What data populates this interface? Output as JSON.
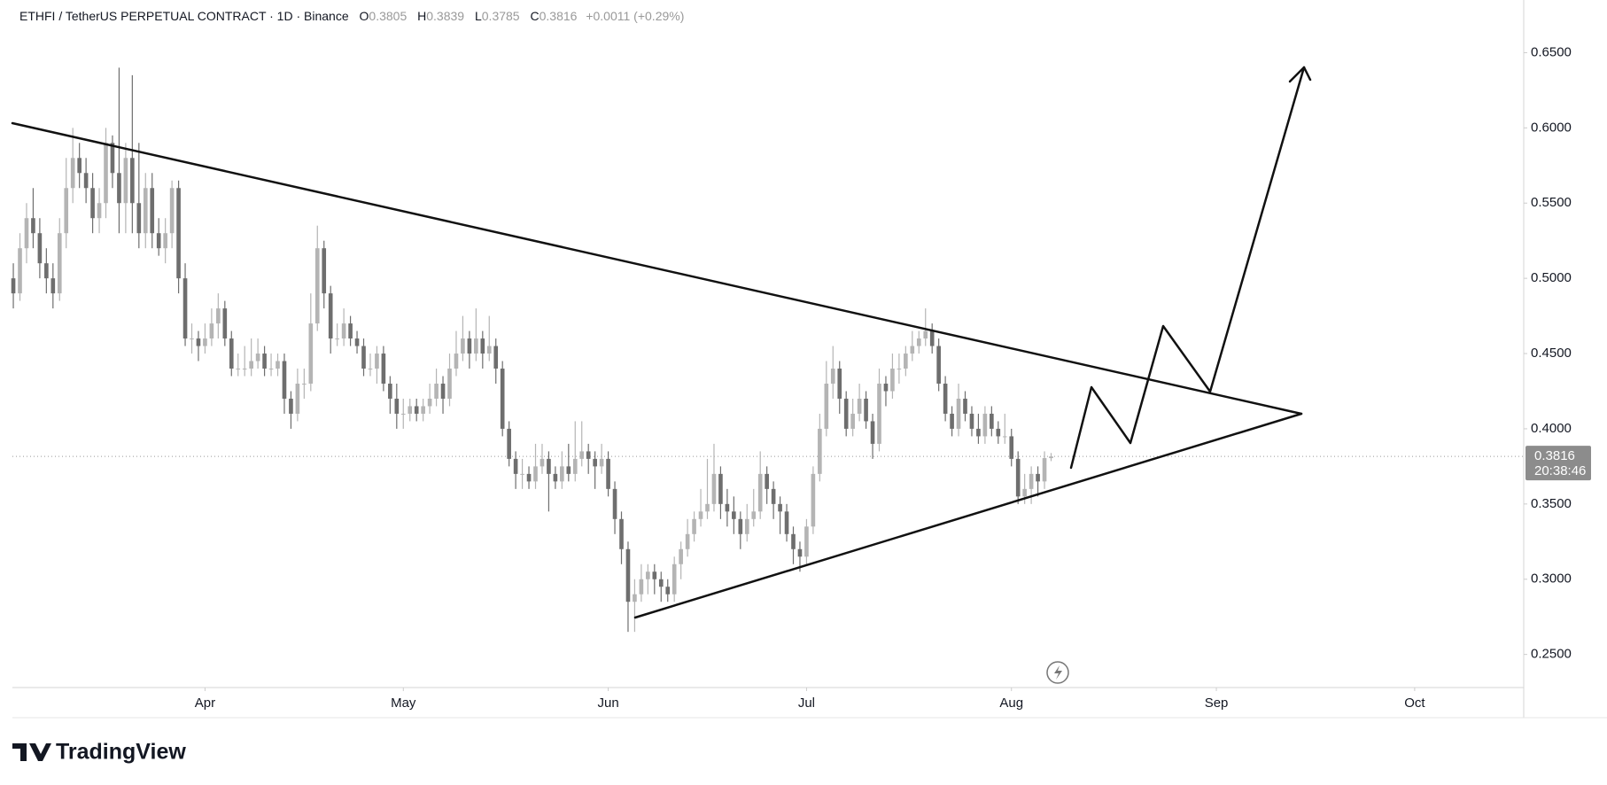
{
  "chart_data": {
    "type": "candlestick",
    "title": "ETHFI / TetherUS PERPETUAL CONTRACT · 1D · Binance",
    "ohlc_letters": [
      "O",
      "H",
      "L",
      "C"
    ],
    "change": "+0.0011 (+0.29%)",
    "countdown": "20:38:46",
    "brand": "TradingView",
    "up_color": "#b4b4b4",
    "down_color": "#6e6e6e",
    "ylim": [
      0.228,
      0.685
    ],
    "yticks": [
      {
        "value": 0.25,
        "label": "0.2500"
      },
      {
        "value": 0.3,
        "label": "0.3000"
      },
      {
        "value": 0.35,
        "label": "0.3500"
      },
      {
        "value": 0.4,
        "label": "0.4000"
      },
      {
        "value": 0.45,
        "label": "0.4500"
      },
      {
        "value": 0.5,
        "label": "0.5000"
      },
      {
        "value": 0.55,
        "label": "0.5500"
      },
      {
        "value": 0.6,
        "label": "0.6000"
      },
      {
        "value": 0.65,
        "label": "0.6500"
      }
    ],
    "xlim": [
      -0.14,
      228.5
    ],
    "xticks": [
      {
        "value": 29,
        "label": "Apr"
      },
      {
        "value": 59,
        "label": "May"
      },
      {
        "value": 90,
        "label": "Jun"
      },
      {
        "value": 120,
        "label": "Jul"
      },
      {
        "value": 151,
        "label": "Aug"
      },
      {
        "value": 182,
        "label": "Sep"
      },
      {
        "value": 212,
        "label": "Oct"
      }
    ],
    "candles": [
      [
        0.5,
        0.51,
        0.48,
        0.49
      ],
      [
        0.49,
        0.53,
        0.485,
        0.52
      ],
      [
        0.52,
        0.55,
        0.51,
        0.54
      ],
      [
        0.54,
        0.56,
        0.52,
        0.53
      ],
      [
        0.53,
        0.54,
        0.5,
        0.51
      ],
      [
        0.51,
        0.52,
        0.49,
        0.5
      ],
      [
        0.5,
        0.51,
        0.48,
        0.49
      ],
      [
        0.49,
        0.54,
        0.485,
        0.53
      ],
      [
        0.53,
        0.58,
        0.52,
        0.56
      ],
      [
        0.56,
        0.6,
        0.55,
        0.58
      ],
      [
        0.58,
        0.59,
        0.56,
        0.57
      ],
      [
        0.57,
        0.58,
        0.55,
        0.56
      ],
      [
        0.56,
        0.57,
        0.53,
        0.54
      ],
      [
        0.54,
        0.56,
        0.53,
        0.55
      ],
      [
        0.55,
        0.6,
        0.54,
        0.59
      ],
      [
        0.59,
        0.595,
        0.56,
        0.57
      ],
      [
        0.57,
        0.64,
        0.53,
        0.55
      ],
      [
        0.55,
        0.59,
        0.53,
        0.58
      ],
      [
        0.58,
        0.635,
        0.53,
        0.55
      ],
      [
        0.55,
        0.59,
        0.52,
        0.53
      ],
      [
        0.53,
        0.57,
        0.52,
        0.56
      ],
      [
        0.56,
        0.57,
        0.52,
        0.53
      ],
      [
        0.53,
        0.54,
        0.515,
        0.52
      ],
      [
        0.52,
        0.54,
        0.51,
        0.53
      ],
      [
        0.53,
        0.565,
        0.52,
        0.56
      ],
      [
        0.56,
        0.565,
        0.49,
        0.5
      ],
      [
        0.5,
        0.51,
        0.455,
        0.46
      ],
      [
        0.46,
        0.47,
        0.45,
        0.46
      ],
      [
        0.46,
        0.465,
        0.445,
        0.455
      ],
      [
        0.455,
        0.47,
        0.45,
        0.46
      ],
      [
        0.46,
        0.48,
        0.455,
        0.47
      ],
      [
        0.47,
        0.49,
        0.46,
        0.48
      ],
      [
        0.48,
        0.485,
        0.455,
        0.46
      ],
      [
        0.46,
        0.465,
        0.435,
        0.44
      ],
      [
        0.44,
        0.45,
        0.435,
        0.44
      ],
      [
        0.44,
        0.455,
        0.435,
        0.44
      ],
      [
        0.44,
        0.46,
        0.435,
        0.445
      ],
      [
        0.445,
        0.46,
        0.44,
        0.45
      ],
      [
        0.45,
        0.455,
        0.435,
        0.44
      ],
      [
        0.44,
        0.45,
        0.435,
        0.44
      ],
      [
        0.44,
        0.45,
        0.435,
        0.445
      ],
      [
        0.445,
        0.45,
        0.41,
        0.42
      ],
      [
        0.42,
        0.425,
        0.4,
        0.41
      ],
      [
        0.41,
        0.44,
        0.405,
        0.43
      ],
      [
        0.43,
        0.44,
        0.42,
        0.43
      ],
      [
        0.43,
        0.49,
        0.425,
        0.47
      ],
      [
        0.47,
        0.535,
        0.465,
        0.52
      ],
      [
        0.52,
        0.525,
        0.48,
        0.49
      ],
      [
        0.49,
        0.495,
        0.45,
        0.46
      ],
      [
        0.46,
        0.47,
        0.455,
        0.46
      ],
      [
        0.46,
        0.48,
        0.455,
        0.47
      ],
      [
        0.47,
        0.475,
        0.455,
        0.46
      ],
      [
        0.46,
        0.465,
        0.45,
        0.455
      ],
      [
        0.455,
        0.46,
        0.435,
        0.44
      ],
      [
        0.44,
        0.45,
        0.435,
        0.44
      ],
      [
        0.44,
        0.455,
        0.43,
        0.45
      ],
      [
        0.45,
        0.455,
        0.425,
        0.43
      ],
      [
        0.43,
        0.435,
        0.41,
        0.42
      ],
      [
        0.42,
        0.43,
        0.4,
        0.41
      ],
      [
        0.41,
        0.42,
        0.4,
        0.41
      ],
      [
        0.41,
        0.42,
        0.405,
        0.415
      ],
      [
        0.415,
        0.42,
        0.405,
        0.41
      ],
      [
        0.41,
        0.42,
        0.405,
        0.415
      ],
      [
        0.415,
        0.43,
        0.41,
        0.42
      ],
      [
        0.42,
        0.44,
        0.415,
        0.43
      ],
      [
        0.43,
        0.435,
        0.41,
        0.42
      ],
      [
        0.42,
        0.45,
        0.415,
        0.44
      ],
      [
        0.44,
        0.465,
        0.435,
        0.45
      ],
      [
        0.45,
        0.475,
        0.445,
        0.46
      ],
      [
        0.46,
        0.465,
        0.44,
        0.45
      ],
      [
        0.45,
        0.48,
        0.445,
        0.46
      ],
      [
        0.46,
        0.465,
        0.44,
        0.45
      ],
      [
        0.45,
        0.475,
        0.445,
        0.455
      ],
      [
        0.455,
        0.46,
        0.43,
        0.44
      ],
      [
        0.44,
        0.445,
        0.395,
        0.4
      ],
      [
        0.4,
        0.405,
        0.375,
        0.38
      ],
      [
        0.38,
        0.385,
        0.36,
        0.37
      ],
      [
        0.37,
        0.38,
        0.36,
        0.37
      ],
      [
        0.37,
        0.375,
        0.36,
        0.365
      ],
      [
        0.365,
        0.39,
        0.36,
        0.375
      ],
      [
        0.375,
        0.39,
        0.37,
        0.38
      ],
      [
        0.38,
        0.385,
        0.345,
        0.37
      ],
      [
        0.37,
        0.375,
        0.36,
        0.365
      ],
      [
        0.365,
        0.385,
        0.36,
        0.375
      ],
      [
        0.375,
        0.39,
        0.365,
        0.37
      ],
      [
        0.37,
        0.405,
        0.365,
        0.38
      ],
      [
        0.38,
        0.405,
        0.375,
        0.385
      ],
      [
        0.385,
        0.39,
        0.37,
        0.38
      ],
      [
        0.38,
        0.385,
        0.36,
        0.375
      ],
      [
        0.375,
        0.39,
        0.37,
        0.38
      ],
      [
        0.38,
        0.385,
        0.355,
        0.36
      ],
      [
        0.36,
        0.365,
        0.33,
        0.34
      ],
      [
        0.34,
        0.345,
        0.31,
        0.32
      ],
      [
        0.32,
        0.325,
        0.265,
        0.285
      ],
      [
        0.285,
        0.3,
        0.265,
        0.29
      ],
      [
        0.29,
        0.31,
        0.285,
        0.3
      ],
      [
        0.3,
        0.31,
        0.29,
        0.305
      ],
      [
        0.305,
        0.31,
        0.29,
        0.3
      ],
      [
        0.3,
        0.305,
        0.285,
        0.295
      ],
      [
        0.295,
        0.3,
        0.285,
        0.29
      ],
      [
        0.29,
        0.315,
        0.285,
        0.31
      ],
      [
        0.31,
        0.325,
        0.3,
        0.32
      ],
      [
        0.32,
        0.34,
        0.315,
        0.33
      ],
      [
        0.33,
        0.345,
        0.325,
        0.34
      ],
      [
        0.34,
        0.36,
        0.335,
        0.345
      ],
      [
        0.345,
        0.38,
        0.34,
        0.35
      ],
      [
        0.35,
        0.39,
        0.345,
        0.37
      ],
      [
        0.37,
        0.375,
        0.34,
        0.35
      ],
      [
        0.35,
        0.36,
        0.335,
        0.345
      ],
      [
        0.345,
        0.355,
        0.33,
        0.34
      ],
      [
        0.34,
        0.345,
        0.32,
        0.33
      ],
      [
        0.33,
        0.35,
        0.325,
        0.34
      ],
      [
        0.34,
        0.36,
        0.335,
        0.345
      ],
      [
        0.345,
        0.385,
        0.34,
        0.37
      ],
      [
        0.37,
        0.375,
        0.35,
        0.36
      ],
      [
        0.36,
        0.365,
        0.34,
        0.35
      ],
      [
        0.35,
        0.355,
        0.33,
        0.345
      ],
      [
        0.345,
        0.35,
        0.325,
        0.33
      ],
      [
        0.33,
        0.335,
        0.31,
        0.32
      ],
      [
        0.32,
        0.325,
        0.305,
        0.315
      ],
      [
        0.315,
        0.34,
        0.31,
        0.335
      ],
      [
        0.335,
        0.375,
        0.33,
        0.37
      ],
      [
        0.37,
        0.41,
        0.365,
        0.4
      ],
      [
        0.4,
        0.445,
        0.395,
        0.43
      ],
      [
        0.43,
        0.455,
        0.42,
        0.44
      ],
      [
        0.44,
        0.445,
        0.41,
        0.42
      ],
      [
        0.42,
        0.425,
        0.395,
        0.4
      ],
      [
        0.4,
        0.42,
        0.395,
        0.41
      ],
      [
        0.41,
        0.43,
        0.405,
        0.42
      ],
      [
        0.42,
        0.425,
        0.4,
        0.405
      ],
      [
        0.405,
        0.41,
        0.38,
        0.39
      ],
      [
        0.39,
        0.44,
        0.385,
        0.43
      ],
      [
        0.43,
        0.435,
        0.415,
        0.425
      ],
      [
        0.425,
        0.45,
        0.42,
        0.44
      ],
      [
        0.44,
        0.45,
        0.43,
        0.44
      ],
      [
        0.44,
        0.455,
        0.435,
        0.45
      ],
      [
        0.45,
        0.465,
        0.445,
        0.455
      ],
      [
        0.455,
        0.465,
        0.45,
        0.46
      ],
      [
        0.46,
        0.48,
        0.455,
        0.465
      ],
      [
        0.465,
        0.47,
        0.45,
        0.455
      ],
      [
        0.455,
        0.46,
        0.425,
        0.43
      ],
      [
        0.43,
        0.435,
        0.405,
        0.41
      ],
      [
        0.41,
        0.415,
        0.395,
        0.4
      ],
      [
        0.4,
        0.43,
        0.395,
        0.42
      ],
      [
        0.42,
        0.425,
        0.405,
        0.41
      ],
      [
        0.41,
        0.415,
        0.395,
        0.4
      ],
      [
        0.4,
        0.41,
        0.39,
        0.395
      ],
      [
        0.395,
        0.415,
        0.39,
        0.41
      ],
      [
        0.41,
        0.415,
        0.395,
        0.4
      ],
      [
        0.4,
        0.405,
        0.39,
        0.395
      ],
      [
        0.395,
        0.41,
        0.39,
        0.395
      ],
      [
        0.395,
        0.4,
        0.375,
        0.38
      ],
      [
        0.38,
        0.385,
        0.35,
        0.355
      ],
      [
        0.355,
        0.37,
        0.35,
        0.36
      ],
      [
        0.36,
        0.375,
        0.35,
        0.37
      ],
      [
        0.37,
        0.375,
        0.355,
        0.365
      ],
      [
        0.365,
        0.385,
        0.36,
        0.3805
      ],
      [
        0.3805,
        0.3839,
        0.3785,
        0.3816
      ]
    ]
  }
}
